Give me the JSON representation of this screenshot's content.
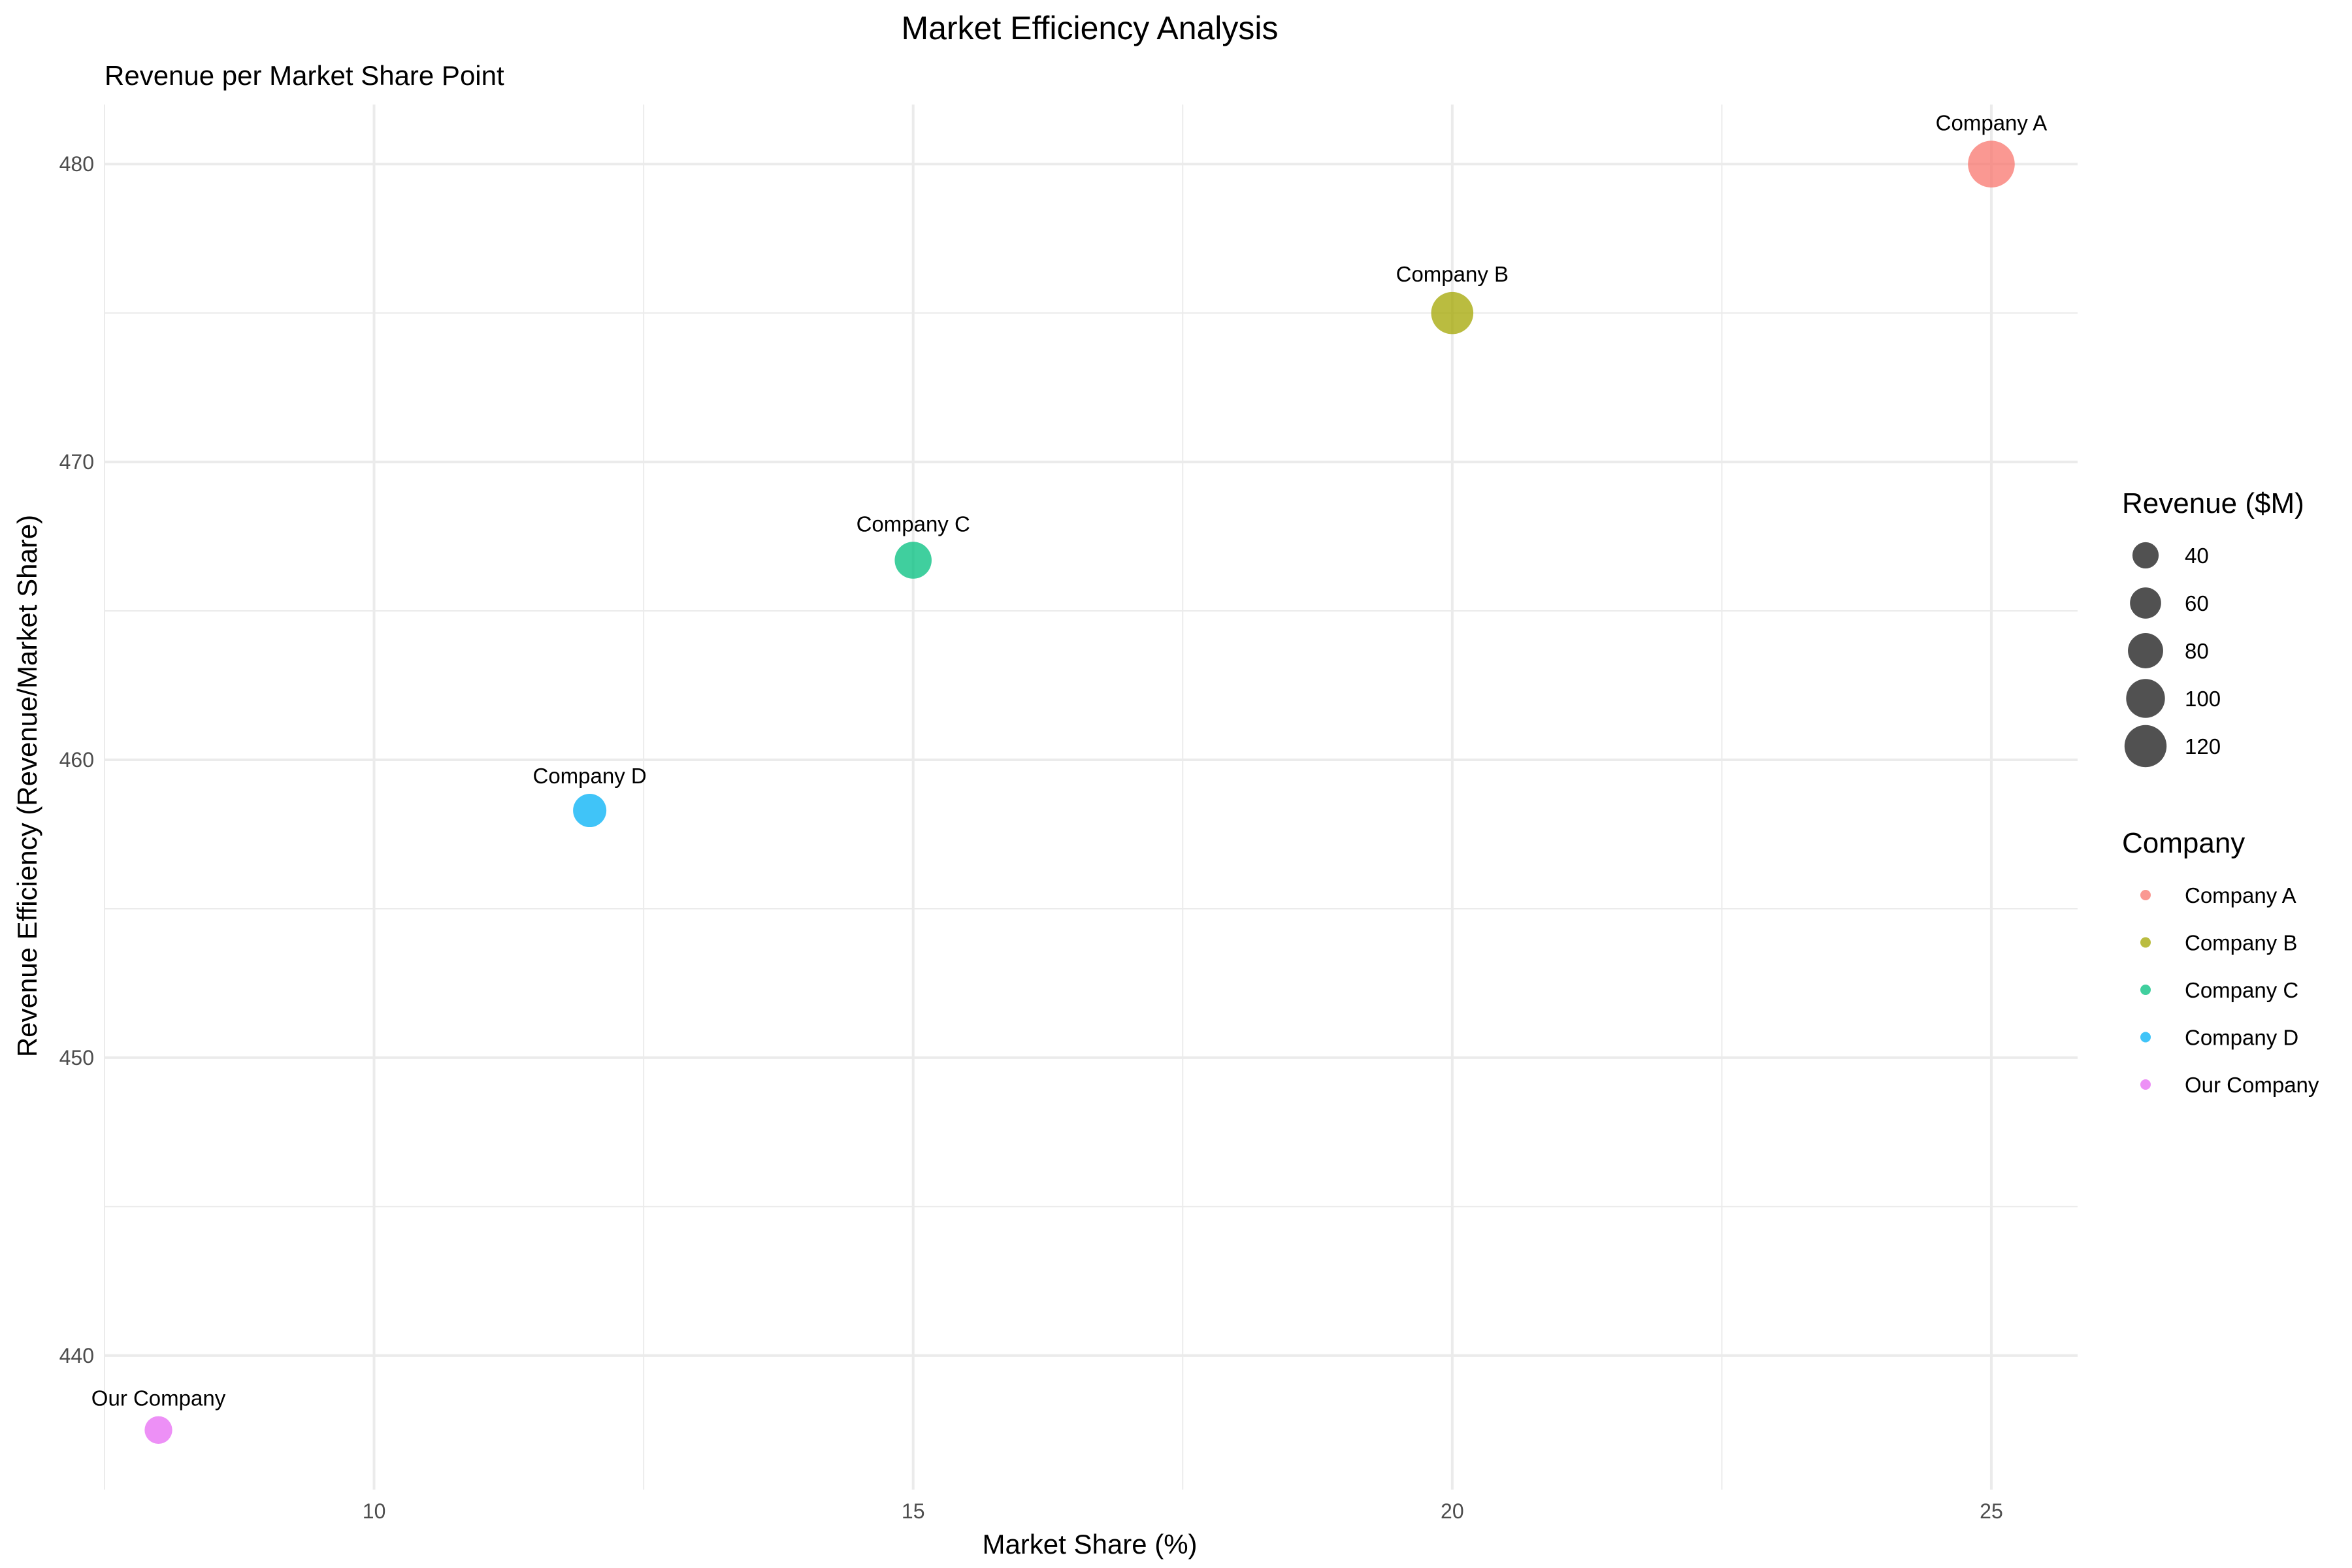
{
  "chart_data": {
    "type": "scatter",
    "title": "Market Efficiency Analysis",
    "subtitle": "Revenue per Market Share Point",
    "xlabel": "Market Share (%)",
    "ylabel": "Revenue Efficiency (Revenue/Market Share)",
    "xlim": [
      7.5,
      25.8
    ],
    "ylim": [
      435.5,
      482
    ],
    "x_ticks": [
      10,
      15,
      20,
      25
    ],
    "y_ticks": [
      440,
      450,
      460,
      470,
      480
    ],
    "grid": true,
    "legend_position": "right",
    "points": [
      {
        "label": "Company A",
        "x": 25,
        "y": 480,
        "revenue": 120,
        "color": "#F8766D"
      },
      {
        "label": "Company B",
        "x": 20,
        "y": 475,
        "revenue": 95,
        "color": "#A3A500"
      },
      {
        "label": "Company C",
        "x": 15,
        "y": 466.7,
        "revenue": 70,
        "color": "#00BF7D"
      },
      {
        "label": "Company D",
        "x": 12,
        "y": 458.3,
        "revenue": 55,
        "color": "#00B0F6"
      },
      {
        "label": "Our Company",
        "x": 8,
        "y": 437.5,
        "revenue": 35,
        "color": "#E76BF3"
      }
    ],
    "size_legend": {
      "title": "Revenue ($M)",
      "values": [
        40,
        60,
        80,
        100,
        120
      ],
      "color": "#333333"
    },
    "color_legend": {
      "title": "Company",
      "entries": [
        {
          "label": "Company A",
          "color": "#F8766D"
        },
        {
          "label": "Company B",
          "color": "#A3A500"
        },
        {
          "label": "Company C",
          "color": "#00BF7D"
        },
        {
          "label": "Company D",
          "color": "#00B0F6"
        },
        {
          "label": "Our Company",
          "color": "#E76BF3"
        }
      ]
    }
  }
}
